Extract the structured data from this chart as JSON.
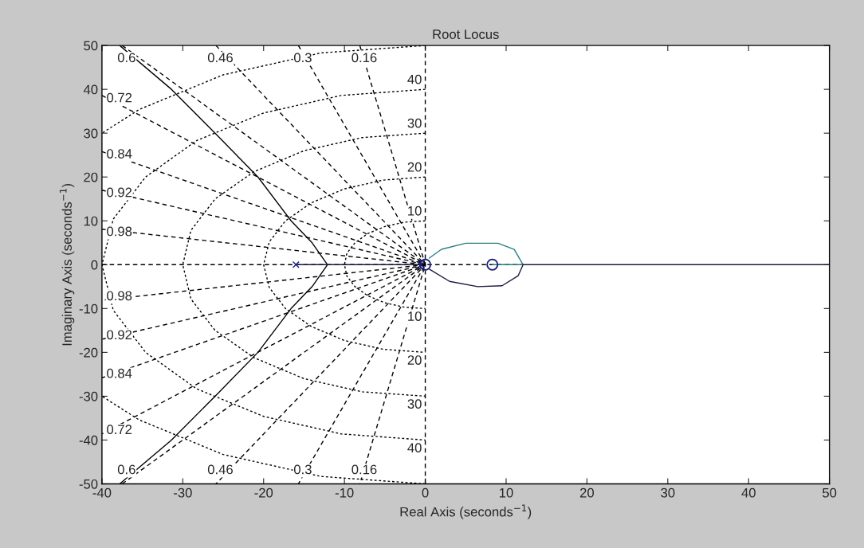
{
  "chart_data": {
    "type": "line",
    "title": "Root Locus",
    "xlabel": "Real Axis (seconds$^{−1}$)",
    "ylabel": "Imaginary Axis (seconds$^{−1}$)",
    "xlim": [
      -40,
      50
    ],
    "ylim": [
      -50,
      50
    ],
    "xticks": [
      -40,
      -30,
      -20,
      -10,
      0,
      10,
      20,
      30,
      40,
      50
    ],
    "yticks": [
      -50,
      -40,
      -30,
      -20,
      -10,
      0,
      10,
      20,
      30,
      40,
      50
    ],
    "grid": false,
    "legend": false,
    "series": [
      {
        "color": "#000000",
        "line_style": "dashed",
        "x": [
          0,
          0
        ],
        "values": [
          50,
          -50
        ]
      },
      {
        "color": "#000000",
        "line_style": "dashed",
        "x": [
          -40,
          12.1
        ],
        "values": [
          0,
          0
        ]
      },
      {
        "color": "#000000",
        "line_style": "dashed",
        "x": [
          -8.1,
          0,
          -8.1
        ],
        "values": [
          50,
          0,
          -50
        ]
      },
      {
        "color": "#000000",
        "line_style": "dashed",
        "x": [
          -15.7,
          0,
          -15.7
        ],
        "values": [
          50,
          0,
          -50
        ]
      },
      {
        "color": "#000000",
        "line_style": "dashed",
        "x": [
          -25.9,
          0,
          -25.9
        ],
        "values": [
          50,
          0,
          -50
        ]
      },
      {
        "color": "#000000",
        "line_style": "dashed",
        "x": [
          -37.5,
          0,
          -37.5
        ],
        "values": [
          50,
          0,
          -50
        ]
      },
      {
        "color": "#000000",
        "line_style": "dashed",
        "x": [
          -40,
          0,
          -40
        ],
        "values": [
          38.6,
          0,
          -38.6
        ]
      },
      {
        "color": "#000000",
        "line_style": "dashed",
        "x": [
          -40,
          0,
          -40
        ],
        "values": [
          25.8,
          0,
          -25.8
        ]
      },
      {
        "color": "#000000",
        "line_style": "dashed",
        "x": [
          -40,
          0,
          -40
        ],
        "values": [
          17,
          0,
          -17
        ]
      },
      {
        "color": "#000000",
        "line_style": "dashed",
        "x": [
          -40,
          0,
          -40
        ],
        "values": [
          8.1,
          0,
          -8.1
        ]
      },
      {
        "color": "#000000",
        "line_style": "dotted",
        "x": [
          0,
          -2.6,
          -5,
          -7.1,
          -8.7,
          -9.7,
          -10,
          -9.7,
          -8.7,
          -7.1,
          -5,
          -2.6,
          0
        ],
        "values": [
          10,
          9.7,
          8.7,
          7.1,
          5,
          2.6,
          0,
          -2.6,
          -5,
          -7.1,
          -8.7,
          -9.7,
          -10
        ]
      },
      {
        "color": "#000000",
        "line_style": "dotted",
        "x": [
          0,
          -5.2,
          -10,
          -14.1,
          -17.3,
          -19.3,
          -20,
          -19.3,
          -17.3,
          -14.1,
          -10,
          -5.2,
          0
        ],
        "values": [
          20,
          19.3,
          17.3,
          14.1,
          10,
          5.2,
          0,
          -5.2,
          -10,
          -14.1,
          -17.3,
          -19.3,
          -20
        ]
      },
      {
        "color": "#000000",
        "line_style": "dotted",
        "x": [
          0,
          -7.8,
          -15,
          -21.2,
          -26,
          -29,
          -30,
          -29,
          -26,
          -21.2,
          -15,
          -7.8,
          0
        ],
        "values": [
          30,
          29,
          26,
          21.2,
          15,
          7.8,
          0,
          -7.8,
          -15,
          -21.2,
          -26,
          -29,
          -30
        ]
      },
      {
        "color": "#000000",
        "line_style": "dotted",
        "x": [
          0,
          -10.4,
          -20,
          -28.3,
          -34.6,
          -38.6,
          -40,
          -38.6,
          -34.6,
          -28.3,
          -20,
          -10.4,
          0
        ],
        "values": [
          40,
          38.6,
          34.6,
          28.3,
          20,
          10.4,
          0,
          -10.4,
          -20,
          -28.3,
          -34.6,
          -38.6,
          -40
        ]
      },
      {
        "color": "#000000",
        "line_style": "dotted",
        "x": [
          0,
          -12.9,
          -25,
          -35.4,
          -40
        ],
        "values": [
          50,
          48.3,
          43.3,
          35.4,
          30
        ]
      },
      {
        "color": "#000000",
        "line_style": "dotted",
        "x": [
          0,
          -12.9,
          -25,
          -35.4,
          -40
        ],
        "values": [
          -50,
          -48.3,
          -43.3,
          -35.4,
          -30
        ]
      },
      {
        "color": "#000000",
        "line_style": "solid",
        "x": [
          -37.8,
          -31.4,
          -26,
          -20.7,
          -16.6,
          -14,
          -12.1,
          -14,
          -16.6,
          -20.7,
          -26,
          -31.4,
          -37.8
        ],
        "values": [
          50,
          40,
          30,
          20,
          10,
          5,
          0,
          -5,
          -10,
          -20,
          -30,
          -40,
          -50
        ]
      },
      {
        "color": "#1a1a40",
        "line_style": "solid",
        "x": [
          -16,
          -0.5
        ],
        "values": [
          0,
          0
        ]
      },
      {
        "color": "#1a1a40",
        "line_style": "solid",
        "x": [
          12.1,
          50
        ],
        "values": [
          0,
          0
        ]
      },
      {
        "color": "#2a7f80",
        "line_style": "solid",
        "x": [
          0.5,
          2,
          5,
          9,
          11,
          12.1,
          8.3
        ],
        "values": [
          1.5,
          3.5,
          4.9,
          4.9,
          3.5,
          0,
          0
        ]
      },
      {
        "color": "#1a1a40",
        "line_style": "solid",
        "x": [
          12.1,
          11.5,
          9.5,
          6.5,
          3,
          0.5
        ],
        "values": [
          0,
          -2.5,
          -4.8,
          -5,
          -3.8,
          -1
        ]
      },
      {
        "type": "scatter",
        "color": "#1a1a80",
        "marker": "cross",
        "x": [
          -16,
          -0.5
        ],
        "values": [
          0,
          0
        ]
      },
      {
        "type": "scatter",
        "color": "#1a1a80",
        "marker": "circle",
        "x": [
          8.3,
          0
        ],
        "values": [
          0,
          0
        ]
      }
    ],
    "annotations": [
      {
        "text": "0.6",
        "x": -37.5,
        "y": 50
      },
      {
        "text": "0.46",
        "x": -25.9,
        "y": 50
      },
      {
        "text": "0.3",
        "x": -15.7,
        "y": 50
      },
      {
        "text": "0.16",
        "x": -8.1,
        "y": 50
      },
      {
        "text": "0.72",
        "x": -40,
        "y": 38.6
      },
      {
        "text": "0.84",
        "x": -40,
        "y": 25.8
      },
      {
        "text": "0.92",
        "x": -40,
        "y": 17
      },
      {
        "text": "0.98",
        "x": -40,
        "y": 8.1
      },
      {
        "text": "0.98",
        "x": -40,
        "y": -8.1
      },
      {
        "text": "0.92",
        "x": -40,
        "y": -17
      },
      {
        "text": "0.84",
        "x": -40,
        "y": -25.8
      },
      {
        "text": "0.72",
        "x": -40,
        "y": -38.6
      },
      {
        "text": "0.6",
        "x": -37.5,
        "y": -50
      },
      {
        "text": "0.46",
        "x": -25.9,
        "y": -50
      },
      {
        "text": "0.3",
        "x": -15.7,
        "y": -50
      },
      {
        "text": "0.16",
        "x": -8.1,
        "y": -50
      },
      {
        "text": "40",
        "x": 0,
        "y": 40
      },
      {
        "text": "30",
        "x": 0,
        "y": 30
      },
      {
        "text": "20",
        "x": 0,
        "y": 20
      },
      {
        "text": "10",
        "x": 0,
        "y": 10
      },
      {
        "text": "10",
        "x": 0,
        "y": -10
      },
      {
        "text": "20",
        "x": 0,
        "y": -20
      },
      {
        "text": "30",
        "x": 0,
        "y": -30
      },
      {
        "text": "40",
        "x": 0,
        "y": -40
      }
    ]
  }
}
